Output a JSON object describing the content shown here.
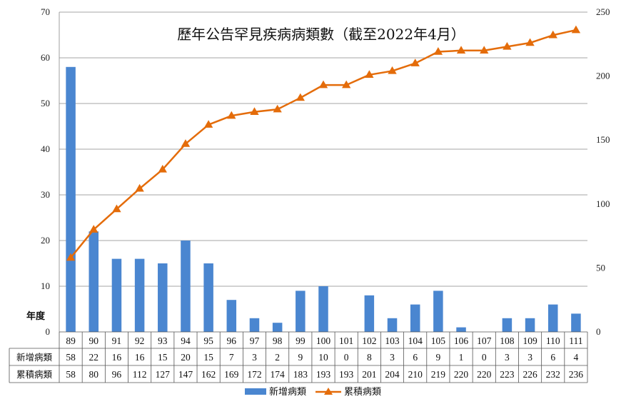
{
  "chart_data": {
    "type": "bar",
    "title": "歷年公告罕見疾病病類數（截至2022年4月）",
    "corner_label": "年度",
    "categories": [
      "89",
      "90",
      "91",
      "92",
      "93",
      "94",
      "95",
      "96",
      "97",
      "98",
      "99",
      "100",
      "101",
      "102",
      "103",
      "104",
      "105",
      "106",
      "107",
      "108",
      "109",
      "110",
      "111"
    ],
    "series": [
      {
        "name": "新增病類",
        "type": "bar",
        "axis": "left",
        "color": "#4a86d0",
        "values": [
          58,
          22,
          16,
          16,
          15,
          20,
          15,
          7,
          3,
          2,
          9,
          10,
          0,
          8,
          3,
          6,
          9,
          1,
          0,
          3,
          3,
          6,
          4
        ]
      },
      {
        "name": "累積病類",
        "type": "line",
        "axis": "right",
        "color": "#e46c0a",
        "marker": "triangle",
        "values": [
          58,
          80,
          96,
          112,
          127,
          147,
          162,
          169,
          172,
          174,
          183,
          193,
          193,
          201,
          204,
          210,
          219,
          220,
          220,
          223,
          226,
          232,
          236
        ]
      }
    ],
    "y_left": {
      "min": 0,
      "max": 70,
      "ticks": [
        0,
        10,
        20,
        30,
        40,
        50,
        60,
        70
      ]
    },
    "y_right": {
      "min": 0,
      "max": 250,
      "ticks": [
        0,
        50,
        100,
        150,
        200,
        250
      ]
    },
    "grid": true,
    "legend_position": "bottom",
    "data_table": true
  }
}
